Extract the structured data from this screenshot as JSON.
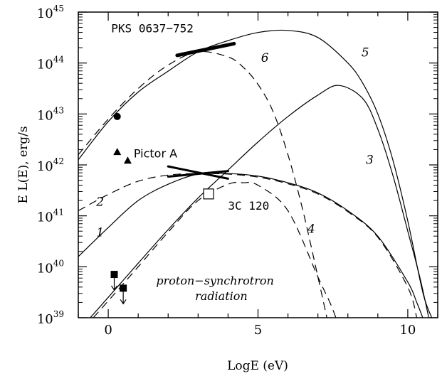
{
  "chart_data": {
    "type": "line",
    "xlabel": "LogE (eV)",
    "ylabel": "E L(E), erg/s",
    "xlim": [
      -1,
      11
    ],
    "ylim": [
      39,
      45
    ],
    "y_log": true,
    "x_ticks": [
      {
        "value": 0,
        "label": "0"
      },
      {
        "value": 5,
        "label": "5"
      },
      {
        "value": 10,
        "label": "10"
      }
    ],
    "y_ticks": [
      {
        "value": 39,
        "base": "10",
        "exp": "39"
      },
      {
        "value": 40,
        "base": "10",
        "exp": "40"
      },
      {
        "value": 41,
        "base": "10",
        "exp": "41"
      },
      {
        "value": 42,
        "base": "10",
        "exp": "42"
      },
      {
        "value": 43,
        "base": "10",
        "exp": "43"
      },
      {
        "value": 44,
        "base": "10",
        "exp": "44"
      },
      {
        "value": 45,
        "base": "10",
        "exp": "45"
      }
    ],
    "grid": false,
    "series": [
      {
        "label": "1",
        "style": "solid",
        "x": [
          -1,
          0,
          1,
          2,
          3,
          4,
          5,
          6,
          7,
          8,
          9,
          10,
          10.3,
          10.5
        ],
        "y": [
          40.2,
          40.77,
          41.3,
          41.62,
          41.82,
          41.83,
          41.78,
          41.65,
          41.45,
          41.1,
          40.6,
          39.7,
          39.3,
          39
        ]
      },
      {
        "label": "2",
        "style": "dashed",
        "x": [
          -1,
          0,
          1,
          2,
          3,
          4,
          5,
          6,
          7,
          8,
          9,
          10,
          10.3
        ],
        "y": [
          41.1,
          41.42,
          41.68,
          41.8,
          41.83,
          41.82,
          41.76,
          41.63,
          41.43,
          41.08,
          40.58,
          39.6,
          39
        ]
      },
      {
        "label": "3",
        "style": "solid",
        "x": [
          -0.6,
          0,
          1,
          2,
          3,
          4,
          5,
          6,
          7,
          7.7,
          8.5,
          9,
          9.5,
          10,
          10.4,
          10.7
        ],
        "y": [
          39,
          39.4,
          40.07,
          40.73,
          41.35,
          41.9,
          42.45,
          42.95,
          43.37,
          43.56,
          43.3,
          42.7,
          41.8,
          40.7,
          39.8,
          39
        ]
      },
      {
        "label": "4",
        "style": "dashed",
        "x": [
          -0.5,
          0,
          1,
          2,
          3,
          4,
          4.5,
          5,
          6,
          7,
          7.4,
          7.6
        ],
        "y": [
          39,
          39.33,
          40,
          40.68,
          41.3,
          41.62,
          41.65,
          41.6,
          41.1,
          39.8,
          39.3,
          39
        ]
      },
      {
        "label": "5",
        "style": "solid",
        "x": [
          -1,
          0,
          1,
          2,
          3,
          4,
          5,
          6,
          7,
          8,
          8.5,
          9,
          9.5,
          10,
          10.5,
          10.8
        ],
        "y": [
          42.1,
          42.85,
          43.43,
          43.84,
          44.22,
          44.44,
          44.6,
          44.64,
          44.5,
          44,
          43.6,
          43,
          42.1,
          40.9,
          39.5,
          39
        ]
      },
      {
        "label": "6",
        "style": "dashed",
        "x": [
          -1,
          0,
          1,
          2,
          3,
          4,
          4.5,
          5,
          5.5,
          6,
          6.5,
          7,
          7.3
        ],
        "y": [
          42.2,
          42.9,
          43.5,
          43.96,
          44.22,
          44.12,
          43.92,
          43.58,
          43.05,
          42.2,
          41.1,
          39.8,
          39
        ]
      }
    ],
    "bowties": [
      {
        "x": [
          2.3,
          4.2
        ],
        "y": [
          44.15,
          44.38
        ],
        "width": 5
      },
      {
        "x": [
          2.0,
          4.0
        ],
        "y": [
          41.97,
          41.73
        ],
        "width": 3
      },
      {
        "x": [
          2.0,
          4.0
        ],
        "y": [
          41.77,
          41.88
        ],
        "width": 3
      }
    ],
    "markers": [
      {
        "name": "PKS-point",
        "shape": "filled-circle",
        "x": 0.3,
        "y": 42.95
      },
      {
        "name": "pictor-a-point-1",
        "shape": "filled-triangle",
        "x": 0.3,
        "y": 42.25
      },
      {
        "name": "pictor-a-point-2",
        "shape": "filled-triangle",
        "x": 0.65,
        "y": 42.08
      },
      {
        "name": "3c120-point",
        "shape": "open-square",
        "x": 3.35,
        "y": 41.43
      },
      {
        "name": "upper-limit-1",
        "shape": "filled-square",
        "x": 0.2,
        "y": 39.85,
        "upper_limit": true
      },
      {
        "name": "upper-limit-2",
        "shape": "filled-square",
        "x": 0.5,
        "y": 39.58,
        "upper_limit": true
      }
    ],
    "annotations": [
      {
        "name": "pks-label",
        "text": "PKS 0637−752",
        "x": 0.1,
        "y": 44.6,
        "font": "mono"
      },
      {
        "name": "pictor-a-label",
        "text": "Pictor A",
        "x": 0.85,
        "y": 42.15,
        "font": "sans"
      },
      {
        "name": "3c120-label",
        "text": "3C 120",
        "x": 4.0,
        "y": 41.12,
        "font": "mono"
      },
      {
        "name": "proton-label",
        "text": "proton−synchrotron",
        "x": 1.6,
        "y": 39.65,
        "font": "italic"
      },
      {
        "name": "radiation-label",
        "text": "radiation",
        "x": 2.9,
        "y": 39.35,
        "font": "italic"
      }
    ],
    "curve_labels": [
      {
        "text": "1",
        "x": -0.4,
        "y": 40.6
      },
      {
        "text": "2",
        "x": -0.4,
        "y": 41.2
      },
      {
        "text": "3",
        "x": 8.6,
        "y": 42.02
      },
      {
        "text": "4",
        "x": 6.65,
        "y": 40.67
      },
      {
        "text": "5",
        "x": 8.45,
        "y": 44.13
      },
      {
        "text": "6",
        "x": 5.1,
        "y": 44.02
      }
    ]
  }
}
